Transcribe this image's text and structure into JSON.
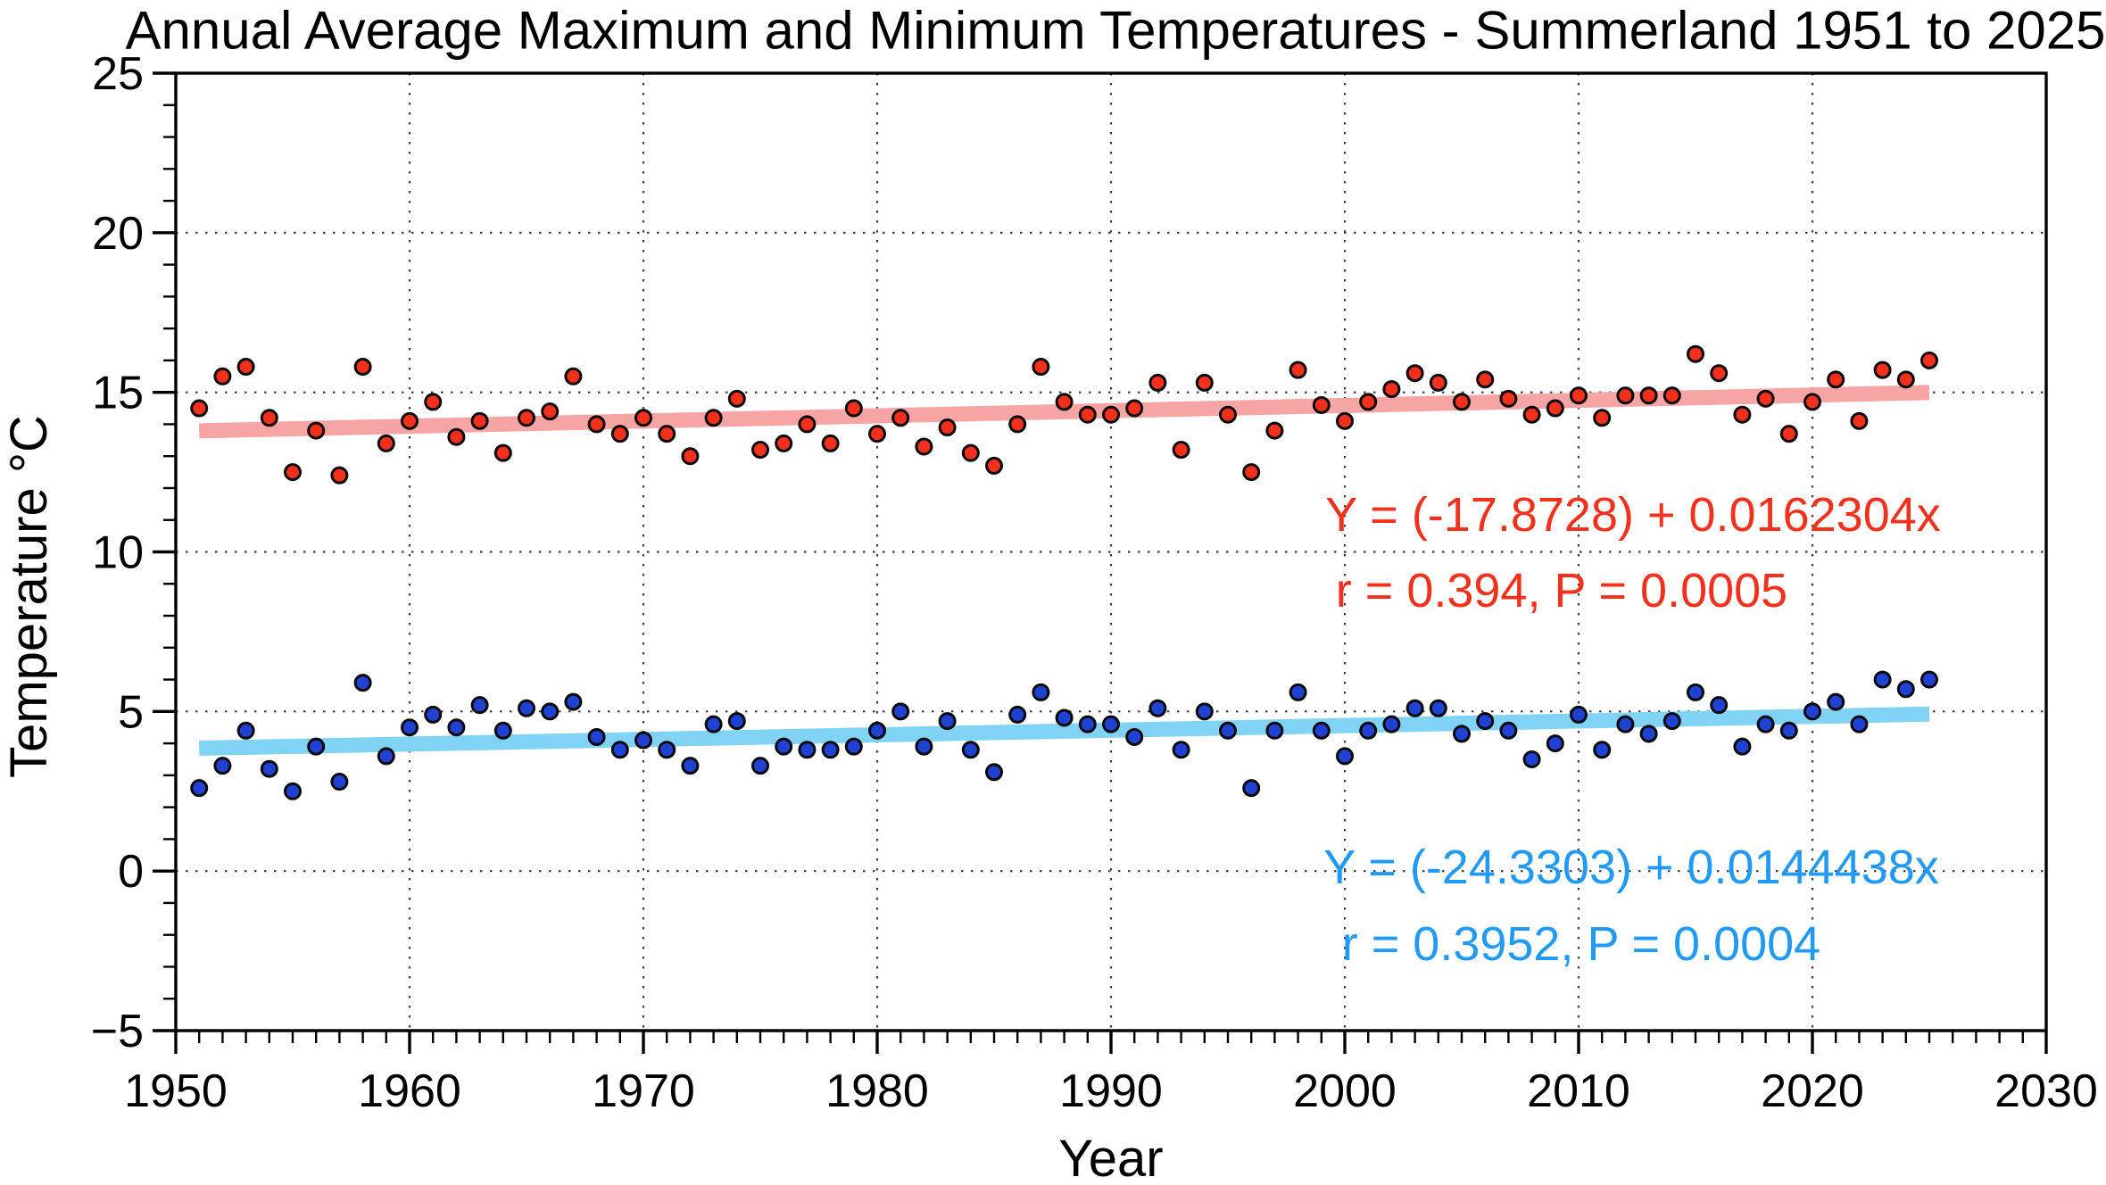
{
  "chart_data": {
    "type": "scatter",
    "title": "Annual Average Maximum and Minimum Temperatures - Summerland 1951 to 2025",
    "xlabel": "Year",
    "ylabel": "Temperature °C",
    "x_range": [
      1950,
      2030
    ],
    "y_range": [
      -5,
      25
    ],
    "x_major_ticks": [
      1950,
      1960,
      1970,
      1980,
      1990,
      2000,
      2010,
      2020,
      2030
    ],
    "x_minor_step": 1,
    "y_major_ticks": [
      -5,
      0,
      5,
      10,
      15,
      20,
      25
    ],
    "y_minor_step": 1,
    "grid": {
      "style": "dotted",
      "color": "#3c3c3c",
      "at": "major-ticks"
    },
    "legend_position": "none",
    "series": [
      {
        "name": "annual-average-maximum-temperature",
        "marker_color": "#f2301b",
        "marker_edge_color": "#0a0a0a",
        "trend_color": "#f7a4a4",
        "annotation_color": "#f2301b",
        "annotation": [
          "Y = (-17.8728) + 0.0162304x",
          "r = 0.394, P = 0.0005"
        ],
        "trend": {
          "intercept": -17.8728,
          "slope": 0.0162304,
          "x_start": 1951,
          "x_end": 2025
        },
        "years": [
          1951,
          1952,
          1953,
          1954,
          1955,
          1956,
          1957,
          1958,
          1959,
          1960,
          1961,
          1962,
          1963,
          1964,
          1965,
          1966,
          1967,
          1968,
          1969,
          1970,
          1971,
          1972,
          1973,
          1974,
          1975,
          1976,
          1977,
          1978,
          1979,
          1980,
          1981,
          1982,
          1983,
          1984,
          1985,
          1986,
          1987,
          1988,
          1989,
          1990,
          1991,
          1992,
          1993,
          1994,
          1995,
          1996,
          1997,
          1998,
          1999,
          2000,
          2001,
          2002,
          2003,
          2004,
          2005,
          2006,
          2007,
          2008,
          2009,
          2010,
          2011,
          2012,
          2013,
          2014,
          2015,
          2016,
          2017,
          2018,
          2019,
          2020,
          2021,
          2022,
          2023,
          2024,
          2025
        ],
        "values": [
          14.5,
          15.5,
          15.8,
          14.2,
          12.5,
          13.8,
          12.4,
          15.8,
          13.4,
          14.1,
          14.7,
          13.6,
          14.1,
          13.1,
          14.2,
          14.4,
          15.5,
          14.0,
          13.7,
          14.2,
          13.7,
          13.0,
          14.2,
          14.8,
          13.2,
          13.4,
          14.0,
          13.4,
          14.5,
          13.7,
          14.2,
          13.3,
          13.9,
          13.1,
          12.7,
          14.0,
          15.8,
          14.7,
          14.3,
          14.3,
          14.5,
          15.3,
          13.2,
          15.3,
          14.3,
          12.5,
          13.8,
          15.7,
          14.6,
          14.1,
          14.7,
          15.1,
          15.6,
          15.3,
          14.7,
          15.4,
          14.8,
          14.3,
          14.5,
          14.9,
          14.2,
          14.9,
          14.9,
          14.9,
          16.2,
          15.6,
          14.3,
          14.8,
          13.7,
          14.7,
          15.4,
          14.1,
          15.7,
          15.4,
          16.0
        ]
      },
      {
        "name": "annual-average-minimum-temperature",
        "marker_color": "#2042d2",
        "marker_edge_color": "#0a0a0a",
        "trend_color": "#80d3f5",
        "annotation_color": "#219af5",
        "annotation": [
          "Y = (-24.3303) + 0.0144438x",
          "r = 0.3952, P = 0.0004"
        ],
        "trend": {
          "intercept": -24.3303,
          "slope": 0.0144438,
          "x_start": 1951,
          "x_end": 2025
        },
        "years": [
          1951,
          1952,
          1953,
          1954,
          1955,
          1956,
          1957,
          1958,
          1959,
          1960,
          1961,
          1962,
          1963,
          1964,
          1965,
          1966,
          1967,
          1968,
          1969,
          1970,
          1971,
          1972,
          1973,
          1974,
          1975,
          1976,
          1977,
          1978,
          1979,
          1980,
          1981,
          1982,
          1983,
          1984,
          1985,
          1986,
          1987,
          1988,
          1989,
          1990,
          1991,
          1992,
          1993,
          1994,
          1995,
          1996,
          1997,
          1998,
          1999,
          2000,
          2001,
          2002,
          2003,
          2004,
          2005,
          2006,
          2007,
          2008,
          2009,
          2010,
          2011,
          2012,
          2013,
          2014,
          2015,
          2016,
          2017,
          2018,
          2019,
          2020,
          2021,
          2022,
          2023,
          2024,
          2025
        ],
        "values": [
          2.6,
          3.3,
          4.4,
          3.2,
          2.5,
          3.9,
          2.8,
          5.9,
          3.6,
          4.5,
          4.9,
          4.5,
          5.2,
          4.4,
          5.1,
          5.0,
          5.3,
          4.2,
          3.8,
          4.1,
          3.8,
          3.3,
          4.6,
          4.7,
          3.3,
          3.9,
          3.8,
          3.8,
          3.9,
          4.4,
          5.0,
          3.9,
          4.7,
          3.8,
          3.1,
          4.9,
          5.6,
          4.8,
          4.6,
          4.6,
          4.2,
          5.1,
          3.8,
          5.0,
          4.4,
          2.6,
          4.4,
          5.6,
          4.4,
          3.6,
          4.4,
          4.6,
          5.1,
          5.1,
          4.3,
          4.7,
          4.4,
          3.5,
          4.0,
          4.9,
          3.8,
          4.6,
          4.3,
          4.7,
          5.6,
          5.2,
          3.9,
          4.6,
          4.4,
          5.0,
          5.3,
          4.6,
          6.0,
          5.7,
          6.0
        ]
      }
    ]
  }
}
